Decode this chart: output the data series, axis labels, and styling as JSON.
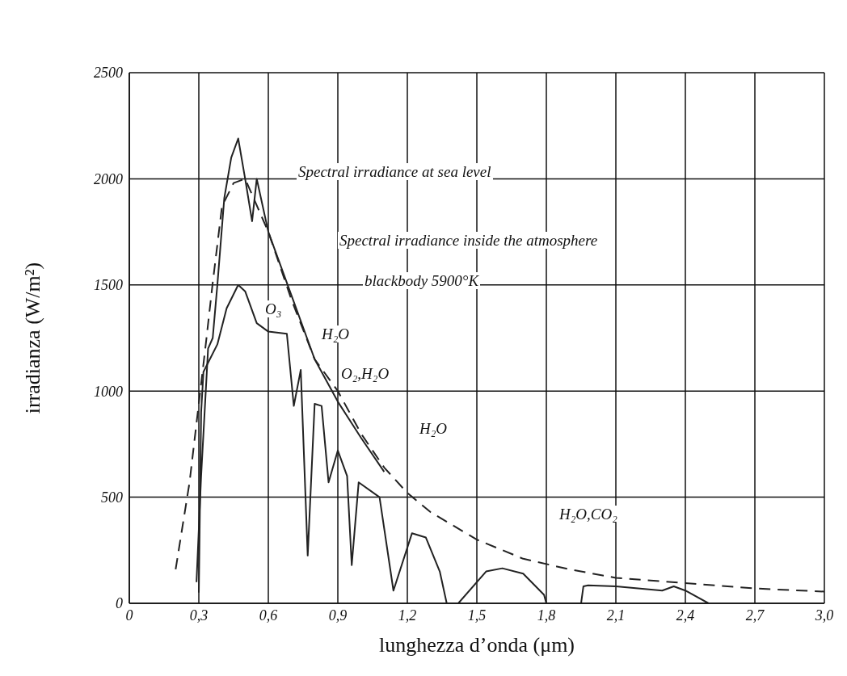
{
  "chart_data": {
    "type": "line",
    "xlabel": "lunghezza d’onda (μm)",
    "ylabel": "irradianza (W/m²)",
    "xlim": [
      0,
      3.0
    ],
    "xticks": [
      0,
      {
        "value": 0.3,
        "label": "0,3"
      },
      {
        "value": 0.6,
        "label": "0,6"
      },
      {
        "value": 0.9,
        "label": "0,9"
      },
      {
        "value": 1.2,
        "label": "1,2"
      },
      {
        "value": 1.5,
        "label": "1,5"
      },
      {
        "value": 1.8,
        "label": "1,8"
      },
      {
        "value": 2.1,
        "label": "2,1"
      },
      {
        "value": 2.4,
        "label": "2,4"
      },
      {
        "value": 2.7,
        "label": "2,7"
      },
      {
        "value": 3.0,
        "label": "3,0"
      }
    ],
    "ylim": [
      0,
      2500
    ],
    "yticks": [
      0,
      500,
      1000,
      1500,
      2000,
      2500
    ],
    "grid": true,
    "marker": "none",
    "series": [
      {
        "color": "#222222",
        "line_style": "solid",
        "x": [
          0.29,
          0.31,
          0.34,
          0.36,
          0.38,
          0.41,
          0.44,
          0.47,
          0.5,
          0.53,
          0.55,
          0.6,
          0.7,
          0.8,
          0.9,
          1.0,
          1.1
        ],
        "values": [
          100,
          600,
          1200,
          1250,
          1500,
          1910,
          2100,
          2190,
          2000,
          1800,
          2000,
          1750,
          1450,
          1150,
          950,
          780,
          620
        ]
      },
      {
        "color": "#222222",
        "line_style": "dashed",
        "x": [
          0.2,
          0.26,
          0.33,
          0.36,
          0.4,
          0.45,
          0.5,
          0.6,
          0.7,
          0.8,
          0.9,
          1.0,
          1.1,
          1.2,
          1.3,
          1.5,
          1.7,
          1.9,
          2.1,
          2.4,
          2.7,
          3.0
        ],
        "values": [
          160,
          570,
          1220,
          1510,
          1870,
          1980,
          2000,
          1750,
          1430,
          1150,
          1000,
          800,
          640,
          520,
          430,
          300,
          210,
          160,
          120,
          95,
          70,
          55
        ]
      },
      {
        "color": "#222222",
        "line_style": "solid",
        "x": [
          0.3,
          0.31,
          0.32,
          0.38,
          0.42,
          0.47,
          0.5,
          0.55,
          0.6,
          0.68,
          0.71,
          0.74,
          0.77,
          0.8,
          0.83,
          0.86,
          0.9,
          0.94,
          0.96,
          0.99,
          1.08,
          1.14,
          1.22,
          1.28,
          1.34,
          1.37,
          1.42,
          1.54,
          1.61,
          1.7,
          1.79,
          1.8,
          1.95,
          1.96,
          1.98,
          2.1,
          2.3,
          2.35,
          2.4,
          2.5
        ],
        "values": [
          50,
          900,
          1090,
          1220,
          1390,
          1500,
          1470,
          1320,
          1280,
          1270,
          930,
          1100,
          225,
          940,
          930,
          570,
          720,
          600,
          180,
          570,
          500,
          60,
          330,
          310,
          150,
          0,
          0,
          150,
          165,
          140,
          40,
          0,
          0,
          80,
          85,
          80,
          60,
          80,
          60,
          0
        ]
      }
    ],
    "annotations": [
      "Spectral irradiance at sea level",
      "Spectral irradiance inside the atmosphere",
      "blackbody 5900°K",
      "O₃",
      "H₂O",
      "O₂,H₂O",
      "H₂O",
      "H₂O,CO₂"
    ]
  }
}
